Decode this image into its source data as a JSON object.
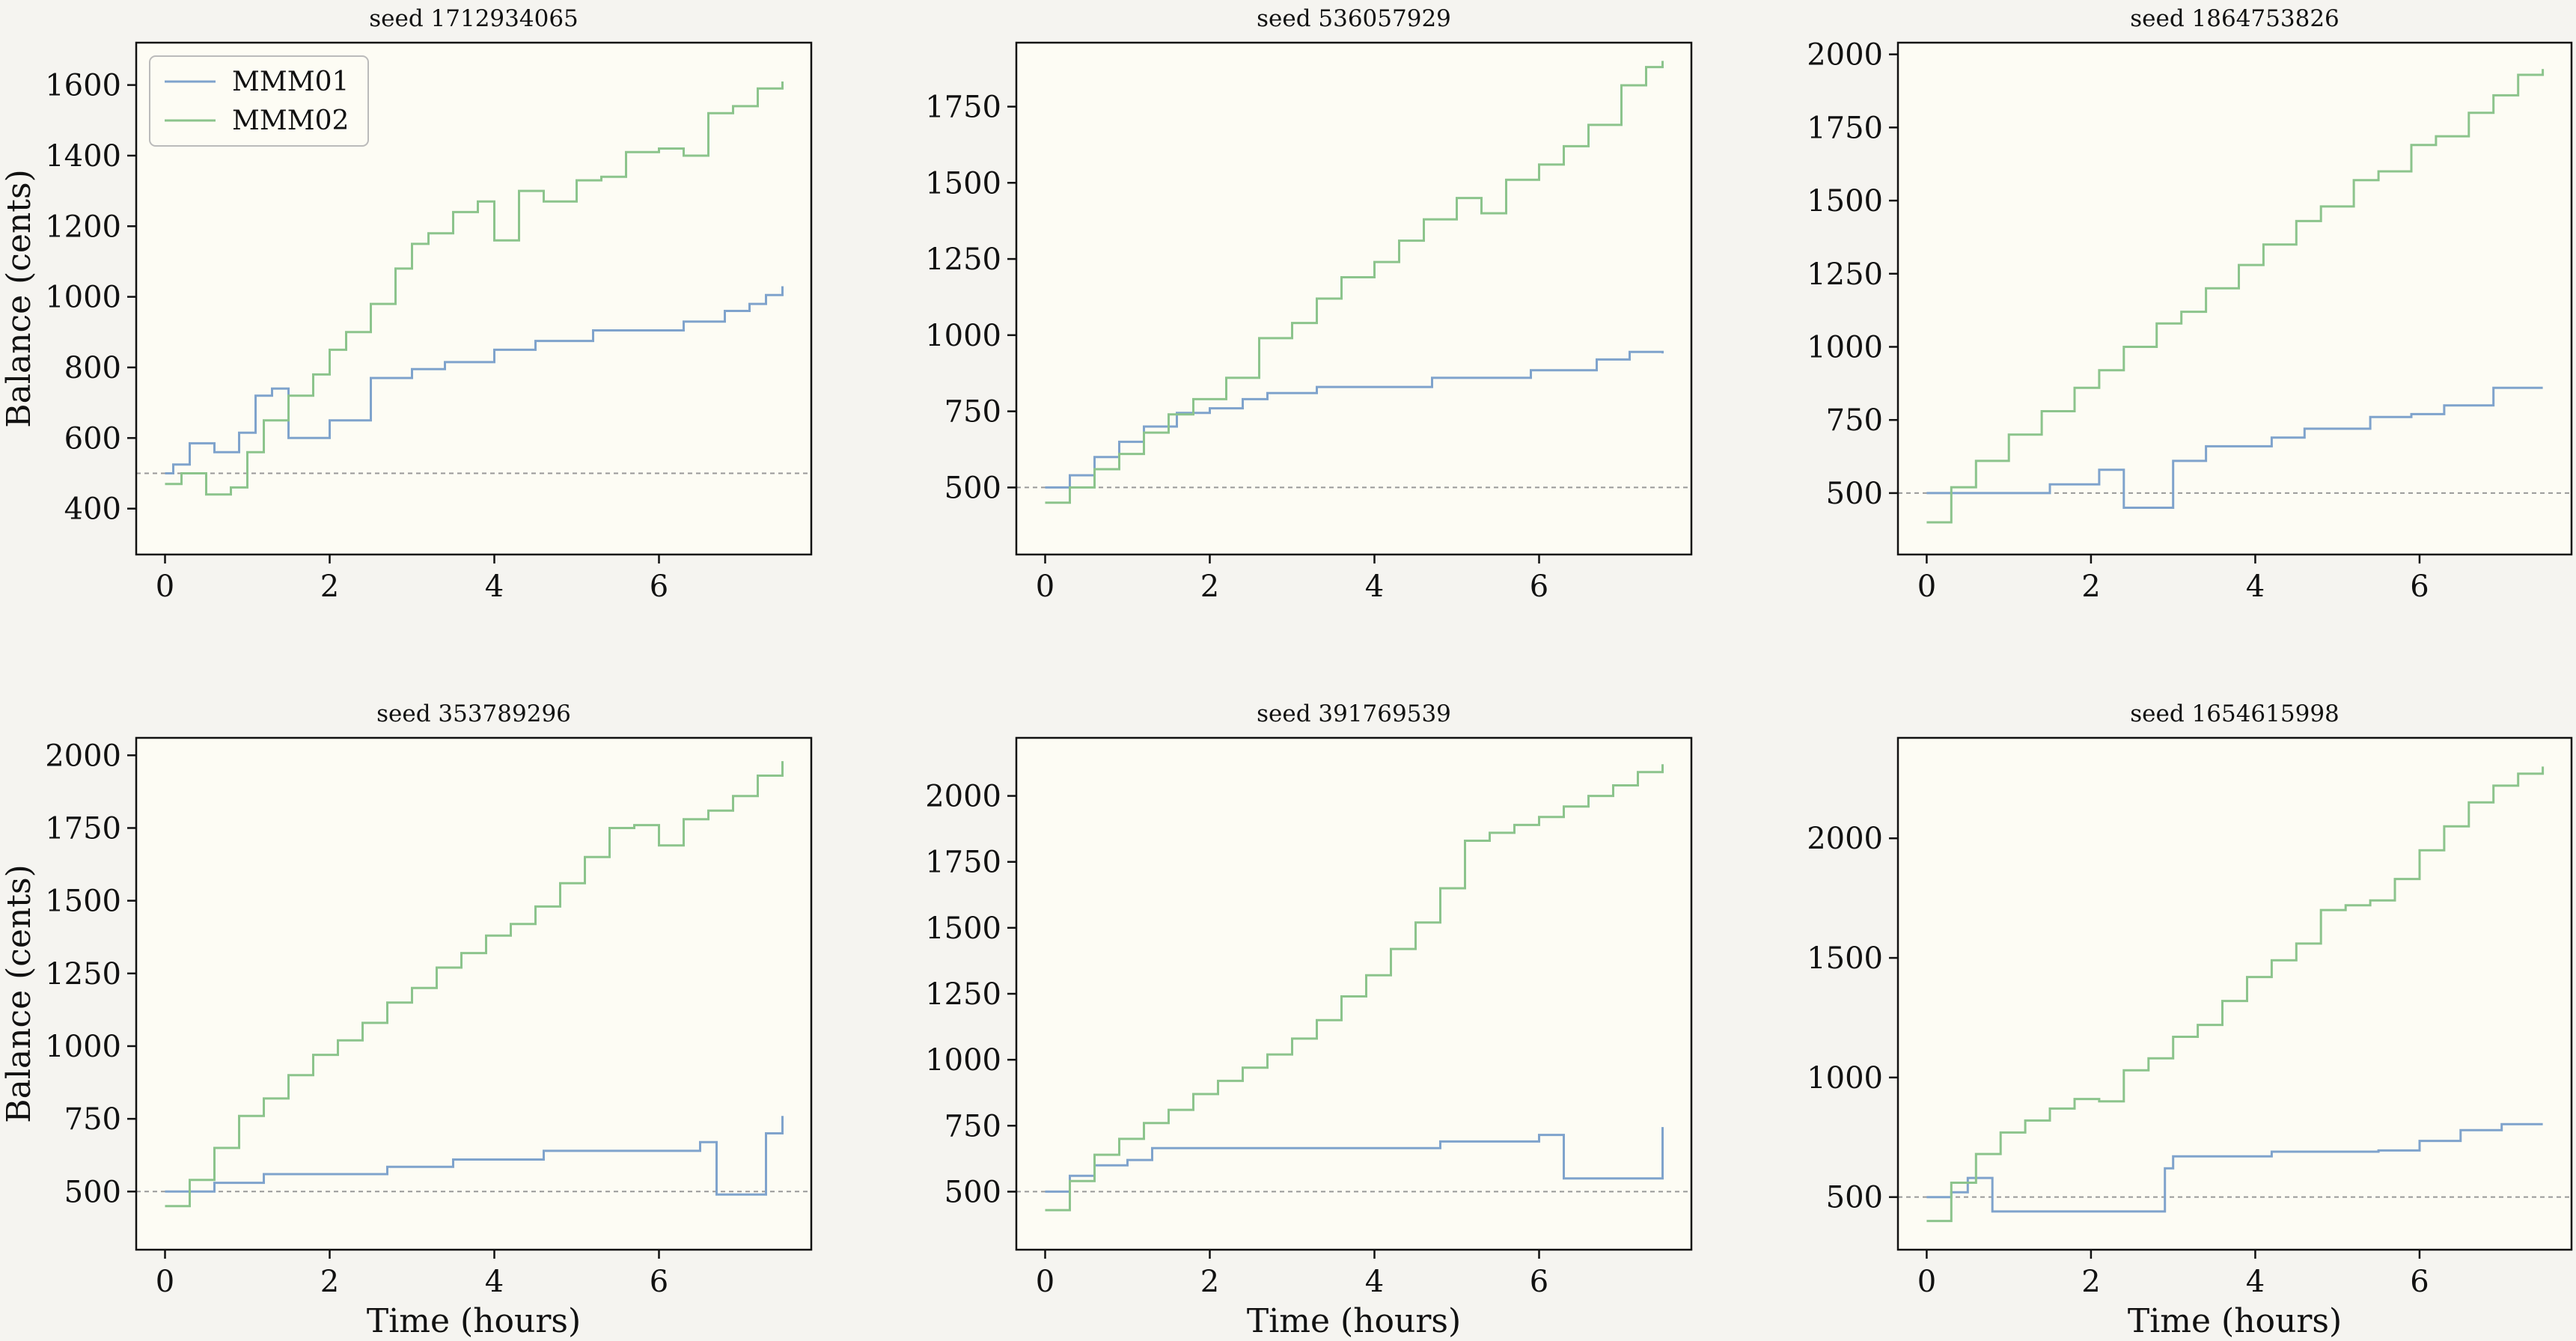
{
  "figure": {
    "colors": {
      "MMM01": "#7fa3cc",
      "MMM02": "#8cc48c",
      "baseline": "#999999",
      "panel_bg": "#fdfcf4",
      "page_bg": "#f5f4f0"
    },
    "legend": {
      "placement": "upper-left of first panel",
      "entries": [
        "MMM01",
        "MMM02"
      ]
    }
  },
  "chart_data": [
    {
      "type": "line",
      "title": "seed 1712934065",
      "xlabel": "",
      "ylabel": "Balance (cents)",
      "xlim": [
        -0.35,
        7.85
      ],
      "ylim": [
        270,
        1720
      ],
      "xticks": [
        0,
        2,
        4,
        6
      ],
      "yticks": [
        400,
        600,
        800,
        1000,
        1200,
        1400,
        1600
      ],
      "baseline": 500,
      "grid": false,
      "series": [
        {
          "name": "MMM01",
          "x": [
            0.0,
            0.1,
            0.3,
            0.6,
            0.9,
            1.1,
            1.3,
            1.5,
            2.0,
            2.5,
            3.0,
            3.4,
            4.0,
            4.5,
            5.2,
            6.3,
            6.8,
            7.1,
            7.3,
            7.5
          ],
          "y": [
            500,
            525,
            585,
            560,
            615,
            720,
            740,
            600,
            650,
            770,
            795,
            815,
            850,
            875,
            905,
            930,
            960,
            980,
            1005,
            1030
          ]
        },
        {
          "name": "MMM02",
          "x": [
            0.0,
            0.2,
            0.5,
            0.8,
            1.0,
            1.2,
            1.5,
            1.8,
            2.0,
            2.2,
            2.5,
            2.8,
            3.0,
            3.2,
            3.5,
            3.8,
            4.0,
            4.3,
            4.6,
            5.0,
            5.3,
            5.6,
            6.0,
            6.3,
            6.6,
            6.9,
            7.2,
            7.5
          ],
          "y": [
            470,
            500,
            440,
            460,
            560,
            650,
            720,
            780,
            850,
            900,
            980,
            1080,
            1150,
            1180,
            1240,
            1270,
            1160,
            1300,
            1270,
            1330,
            1340,
            1410,
            1420,
            1400,
            1520,
            1540,
            1590,
            1610
          ]
        }
      ]
    },
    {
      "type": "line",
      "title": "seed 536057929",
      "xlabel": "",
      "ylabel": "",
      "xlim": [
        -0.35,
        7.85
      ],
      "ylim": [
        280,
        1960
      ],
      "xticks": [
        0,
        2,
        4,
        6
      ],
      "yticks": [
        500,
        750,
        1000,
        1250,
        1500,
        1750
      ],
      "baseline": 500,
      "grid": false,
      "series": [
        {
          "name": "MMM01",
          "x": [
            0.0,
            0.3,
            0.6,
            0.9,
            1.2,
            1.6,
            2.0,
            2.4,
            2.7,
            3.3,
            4.7,
            5.9,
            6.7,
            7.1,
            7.5
          ],
          "y": [
            500,
            540,
            600,
            650,
            700,
            745,
            760,
            790,
            810,
            830,
            860,
            885,
            920,
            945,
            940
          ]
        },
        {
          "name": "MMM02",
          "x": [
            0.0,
            0.3,
            0.6,
            0.9,
            1.2,
            1.5,
            1.8,
            2.2,
            2.6,
            3.0,
            3.3,
            3.6,
            4.0,
            4.3,
            4.6,
            5.0,
            5.3,
            5.6,
            6.0,
            6.3,
            6.6,
            7.0,
            7.3,
            7.5
          ],
          "y": [
            450,
            500,
            560,
            610,
            680,
            740,
            790,
            860,
            990,
            1040,
            1120,
            1190,
            1240,
            1310,
            1380,
            1450,
            1400,
            1510,
            1560,
            1620,
            1690,
            1820,
            1880,
            1900
          ]
        }
      ]
    },
    {
      "type": "line",
      "title": "seed 1864753826",
      "xlabel": "",
      "ylabel": "",
      "xlim": [
        -0.35,
        7.85
      ],
      "ylim": [
        290,
        2040
      ],
      "xticks": [
        0,
        2,
        4,
        6
      ],
      "yticks": [
        500,
        750,
        1000,
        1250,
        1500,
        1750,
        2000
      ],
      "baseline": 500,
      "grid": false,
      "series": [
        {
          "name": "MMM01",
          "x": [
            0.0,
            1.5,
            2.1,
            2.4,
            3.0,
            3.4,
            4.2,
            4.6,
            5.4,
            5.9,
            6.3,
            6.9,
            7.5
          ],
          "y": [
            500,
            530,
            580,
            450,
            610,
            660,
            690,
            720,
            760,
            770,
            800,
            860,
            860
          ]
        },
        {
          "name": "MMM02",
          "x": [
            0.0,
            0.3,
            0.6,
            1.0,
            1.4,
            1.8,
            2.1,
            2.4,
            2.8,
            3.1,
            3.4,
            3.8,
            4.1,
            4.5,
            4.8,
            5.2,
            5.5,
            5.9,
            6.2,
            6.6,
            6.9,
            7.2,
            7.5
          ],
          "y": [
            400,
            520,
            610,
            700,
            780,
            860,
            920,
            1000,
            1080,
            1120,
            1200,
            1280,
            1350,
            1430,
            1480,
            1570,
            1600,
            1690,
            1720,
            1800,
            1860,
            1930,
            1950
          ]
        }
      ]
    },
    {
      "type": "line",
      "title": "seed 353789296",
      "xlabel": "Time (hours)",
      "ylabel": "Balance (cents)",
      "xlim": [
        -0.35,
        7.85
      ],
      "ylim": [
        300,
        2060
      ],
      "xticks": [
        0,
        2,
        4,
        6
      ],
      "yticks": [
        500,
        750,
        1000,
        1250,
        1500,
        1750,
        2000
      ],
      "baseline": 500,
      "grid": false,
      "series": [
        {
          "name": "MMM01",
          "x": [
            0.0,
            0.6,
            1.2,
            2.5,
            2.7,
            3.5,
            4.6,
            6.5,
            6.7,
            7.3,
            7.5
          ],
          "y": [
            500,
            530,
            560,
            560,
            585,
            610,
            640,
            670,
            490,
            700,
            760
          ]
        },
        {
          "name": "MMM02",
          "x": [
            0.0,
            0.3,
            0.6,
            0.9,
            1.2,
            1.5,
            1.8,
            2.1,
            2.4,
            2.7,
            3.0,
            3.3,
            3.6,
            3.9,
            4.2,
            4.5,
            4.8,
            5.1,
            5.4,
            5.7,
            6.0,
            6.3,
            6.6,
            6.9,
            7.2,
            7.5
          ],
          "y": [
            450,
            540,
            650,
            760,
            820,
            900,
            970,
            1020,
            1080,
            1150,
            1200,
            1270,
            1320,
            1380,
            1420,
            1480,
            1560,
            1650,
            1750,
            1760,
            1690,
            1780,
            1810,
            1860,
            1930,
            1980
          ]
        }
      ]
    },
    {
      "type": "line",
      "title": "seed 391769539",
      "xlabel": "Time (hours)",
      "ylabel": "",
      "xlim": [
        -0.35,
        7.85
      ],
      "ylim": [
        280,
        2220
      ],
      "xticks": [
        0,
        2,
        4,
        6
      ],
      "yticks": [
        500,
        750,
        1000,
        1250,
        1500,
        1750,
        2000
      ],
      "baseline": 500,
      "grid": false,
      "series": [
        {
          "name": "MMM01",
          "x": [
            0.0,
            0.3,
            0.6,
            1.0,
            1.3,
            3.2,
            4.8,
            6.0,
            6.3,
            7.5
          ],
          "y": [
            500,
            560,
            600,
            620,
            665,
            665,
            690,
            715,
            550,
            745
          ]
        },
        {
          "name": "MMM02",
          "x": [
            0.0,
            0.3,
            0.6,
            0.9,
            1.2,
            1.5,
            1.8,
            2.1,
            2.4,
            2.7,
            3.0,
            3.3,
            3.6,
            3.9,
            4.2,
            4.5,
            4.8,
            5.1,
            5.4,
            5.7,
            6.0,
            6.3,
            6.6,
            6.9,
            7.2,
            7.5
          ],
          "y": [
            430,
            540,
            640,
            700,
            760,
            810,
            870,
            920,
            970,
            1020,
            1080,
            1150,
            1240,
            1320,
            1420,
            1520,
            1650,
            1830,
            1860,
            1890,
            1920,
            1960,
            2000,
            2040,
            2090,
            2120
          ]
        }
      ]
    },
    {
      "type": "line",
      "title": "seed 1654615998",
      "xlabel": "Time (hours)",
      "ylabel": "",
      "xlim": [
        -0.35,
        7.85
      ],
      "ylim": [
        280,
        2420
      ],
      "xticks": [
        0,
        2,
        4,
        6
      ],
      "yticks": [
        500,
        1000,
        1500,
        2000
      ],
      "baseline": 500,
      "grid": false,
      "series": [
        {
          "name": "MMM01",
          "x": [
            0.0,
            0.3,
            0.5,
            0.8,
            2.6,
            2.9,
            3.0,
            4.2,
            5.5,
            6.0,
            6.5,
            7.0,
            7.5
          ],
          "y": [
            500,
            520,
            580,
            440,
            440,
            620,
            670,
            690,
            695,
            735,
            780,
            805,
            805
          ]
        },
        {
          "name": "MMM02",
          "x": [
            0.0,
            0.3,
            0.6,
            0.9,
            1.2,
            1.5,
            1.8,
            2.1,
            2.4,
            2.7,
            3.0,
            3.3,
            3.6,
            3.9,
            4.2,
            4.5,
            4.8,
            5.1,
            5.4,
            5.7,
            6.0,
            6.3,
            6.6,
            6.9,
            7.2,
            7.5
          ],
          "y": [
            400,
            560,
            680,
            770,
            820,
            870,
            910,
            900,
            1030,
            1080,
            1170,
            1220,
            1320,
            1420,
            1490,
            1560,
            1700,
            1720,
            1740,
            1830,
            1950,
            2050,
            2150,
            2220,
            2270,
            2300
          ]
        }
      ]
    }
  ]
}
